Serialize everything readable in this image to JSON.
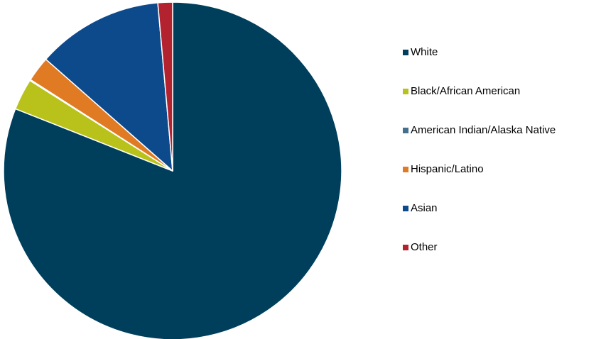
{
  "chart_data": {
    "type": "pie",
    "title": "",
    "legend_position": "right",
    "start_angle": "top, clockwise",
    "slices": [
      {
        "label": "White",
        "value": 81.0,
        "color": "#003f5c"
      },
      {
        "label": "Black/African American",
        "value": 3.0,
        "color": "#b9c21a"
      },
      {
        "label": "American Indian/Alaska Native",
        "value": 0.1,
        "color": "#44708e"
      },
      {
        "label": "Hispanic/Latino",
        "value": 2.4,
        "color": "#e07b24"
      },
      {
        "label": "Asian",
        "value": 12.1,
        "color": "#0d4a8c"
      },
      {
        "label": "Other",
        "value": 1.4,
        "color": "#b3222f"
      }
    ]
  }
}
